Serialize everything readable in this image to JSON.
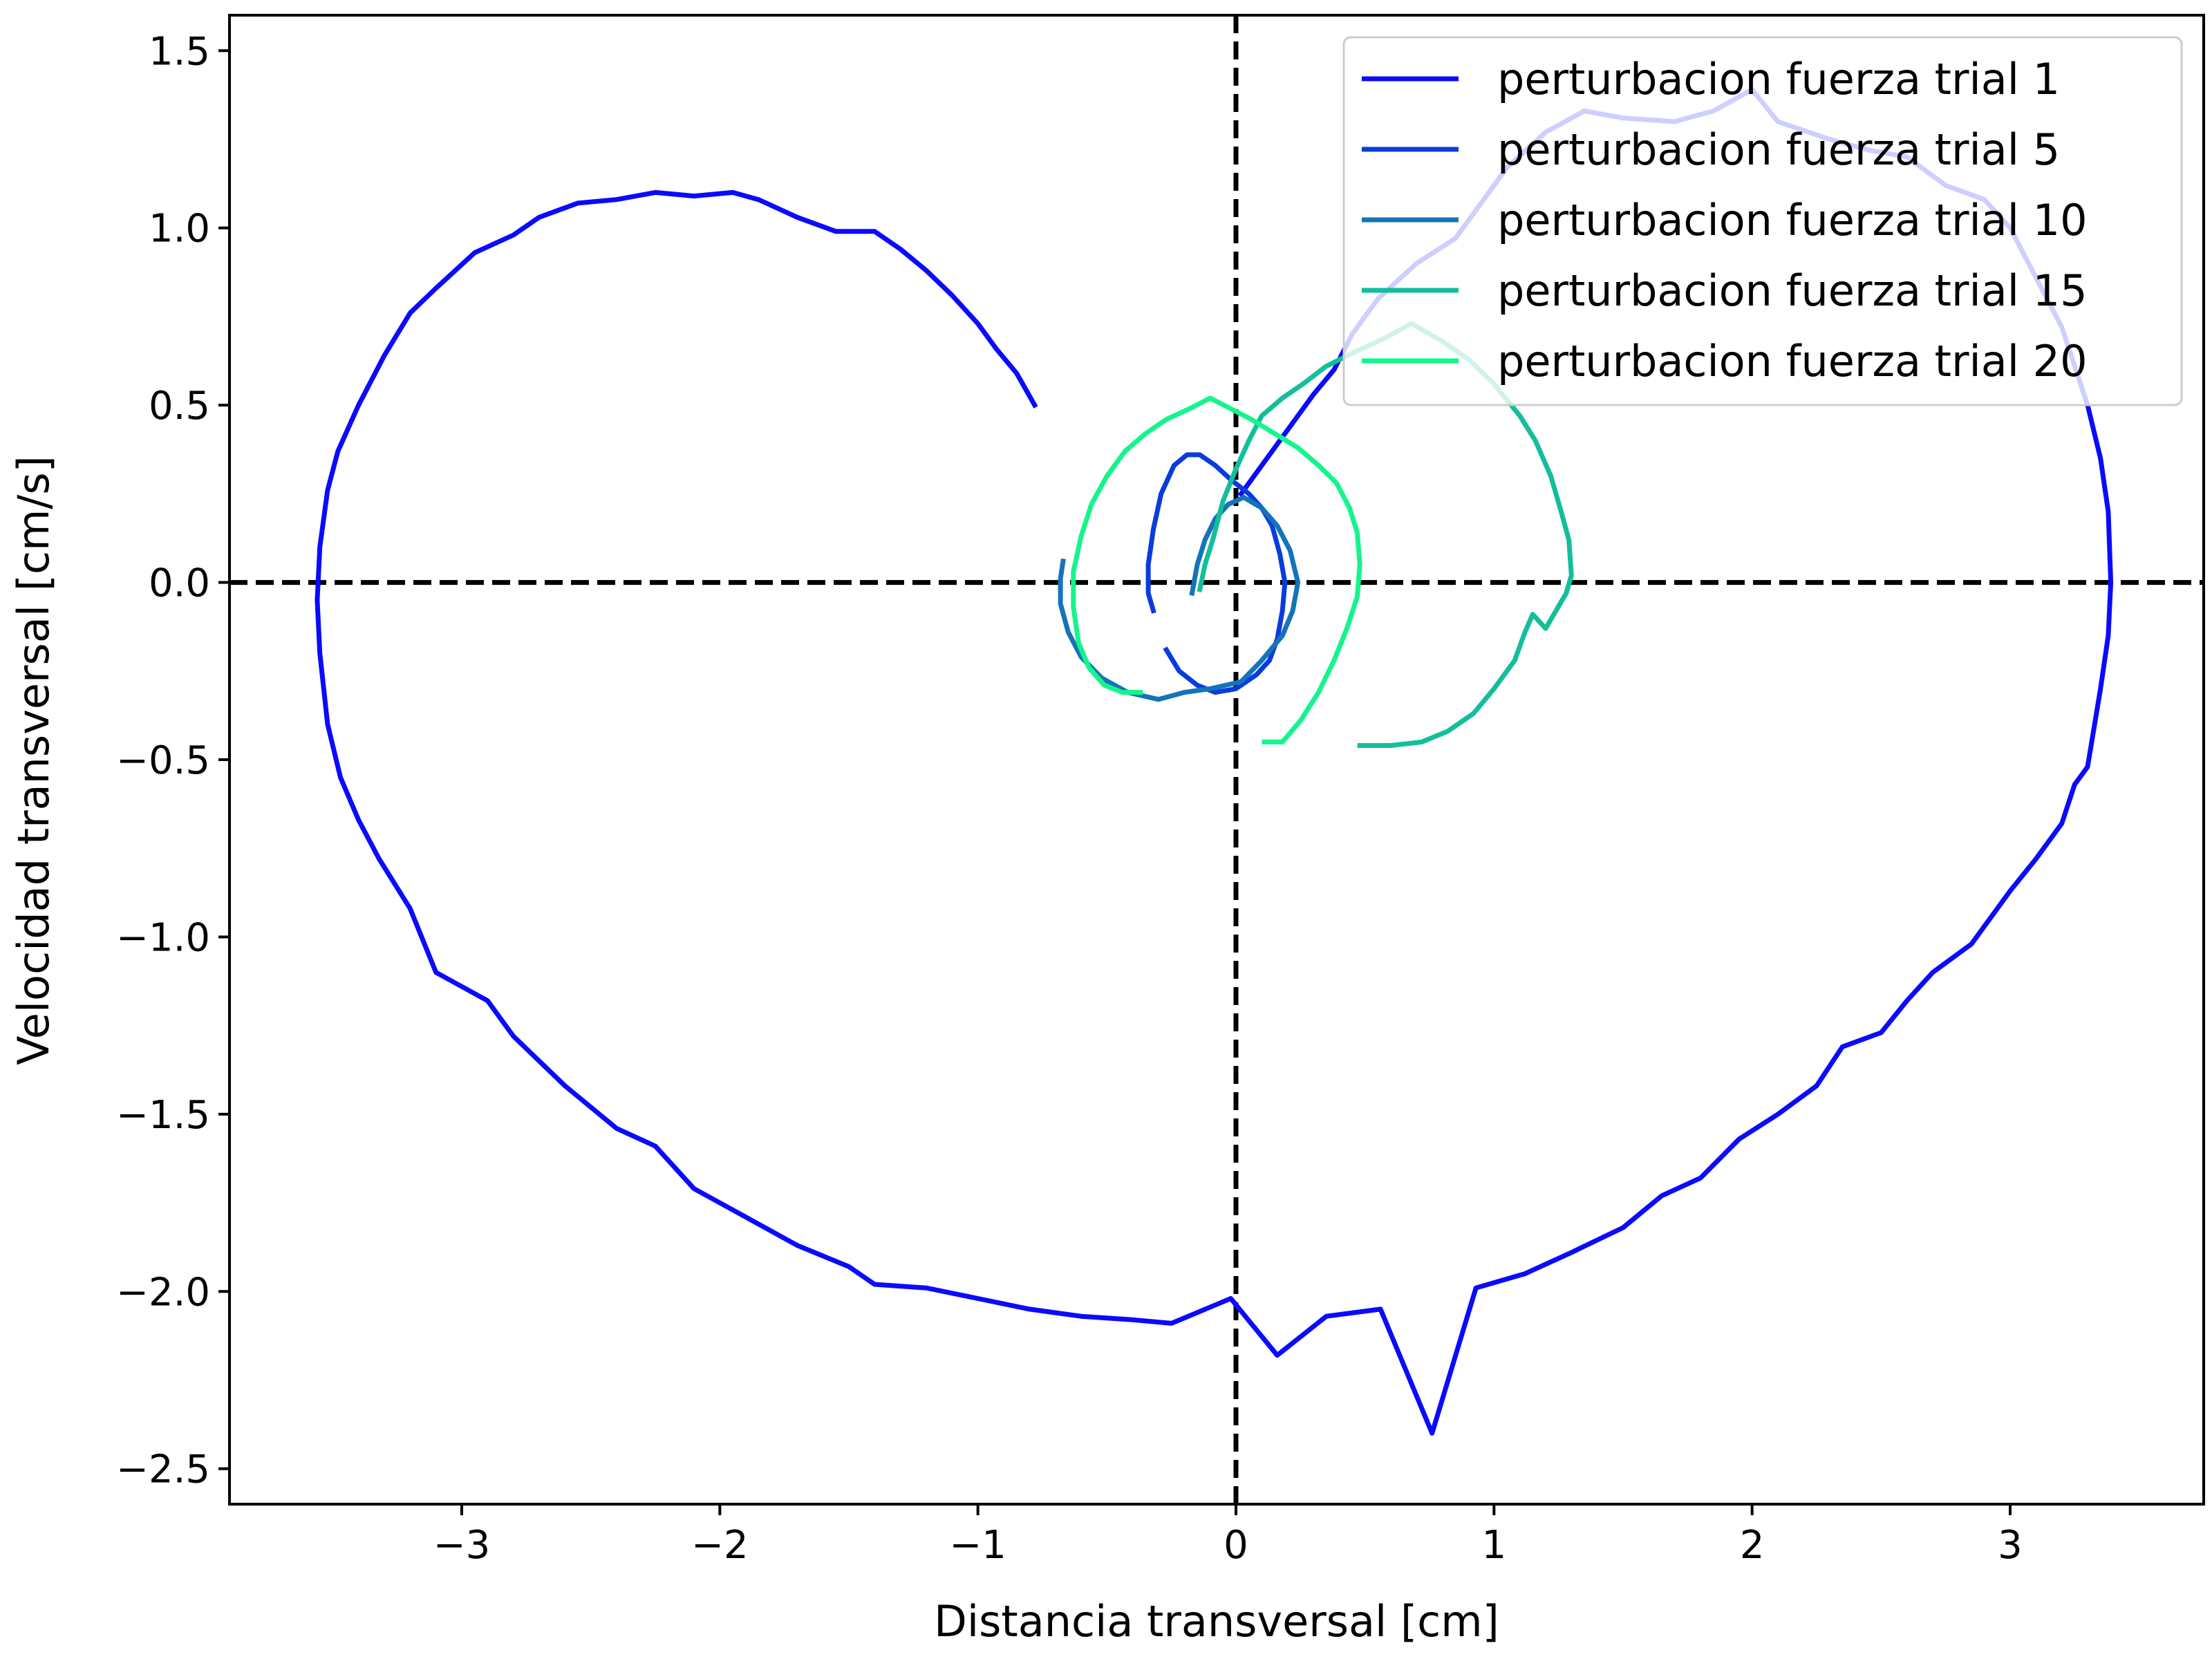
{
  "chart_data": {
    "type": "line",
    "title": "",
    "xlabel": "Distancia transversal [cm]",
    "ylabel": "Velocidad transversal [cm/s]",
    "xlim": [
      -3.9,
      3.75
    ],
    "ylim": [
      -2.6,
      1.6
    ],
    "xticks": [
      -3,
      -2,
      -1,
      0,
      1,
      2,
      3
    ],
    "yticks": [
      -2.5,
      -2.0,
      -1.5,
      -1.0,
      -0.5,
      0.0,
      0.5,
      1.0,
      1.5
    ],
    "xtick_labels": [
      "−3",
      "−2",
      "−1",
      "0",
      "1",
      "2",
      "3"
    ],
    "ytick_labels": [
      "−2.5",
      "−2.0",
      "−1.5",
      "−1.0",
      "−0.5",
      "0.0",
      "0.5",
      "1.0",
      "1.5"
    ],
    "grid": false,
    "legend_position": "top-right",
    "reference_lines": [
      {
        "orientation": "vertical",
        "value": 0,
        "style": "dashed",
        "color": "#000000"
      },
      {
        "orientation": "horizontal",
        "value": 0,
        "style": "dashed",
        "color": "#000000"
      }
    ],
    "series": [
      {
        "name": "perturbacion fuerza trial 1",
        "color": "#0a0aff",
        "points": [
          [
            -0.78,
            0.5
          ],
          [
            -0.85,
            0.59
          ],
          [
            -0.93,
            0.66
          ],
          [
            -1.0,
            0.73
          ],
          [
            -1.1,
            0.81
          ],
          [
            -1.2,
            0.88
          ],
          [
            -1.3,
            0.94
          ],
          [
            -1.4,
            0.99
          ],
          [
            -1.55,
            0.99
          ],
          [
            -1.7,
            1.03
          ],
          [
            -1.85,
            1.08
          ],
          [
            -1.95,
            1.1
          ],
          [
            -2.1,
            1.09
          ],
          [
            -2.25,
            1.1
          ],
          [
            -2.4,
            1.08
          ],
          [
            -2.55,
            1.07
          ],
          [
            -2.7,
            1.03
          ],
          [
            -2.8,
            0.98
          ],
          [
            -2.95,
            0.93
          ],
          [
            -3.1,
            0.83
          ],
          [
            -3.2,
            0.76
          ],
          [
            -3.3,
            0.64
          ],
          [
            -3.4,
            0.5
          ],
          [
            -3.48,
            0.37
          ],
          [
            -3.52,
            0.26
          ],
          [
            -3.55,
            0.1
          ],
          [
            -3.56,
            -0.05
          ],
          [
            -3.55,
            -0.2
          ],
          [
            -3.52,
            -0.4
          ],
          [
            -3.47,
            -0.55
          ],
          [
            -3.4,
            -0.67
          ],
          [
            -3.32,
            -0.78
          ],
          [
            -3.2,
            -0.92
          ],
          [
            -3.1,
            -1.1
          ],
          [
            -2.9,
            -1.18
          ],
          [
            -2.8,
            -1.28
          ],
          [
            -2.6,
            -1.42
          ],
          [
            -2.4,
            -1.54
          ],
          [
            -2.25,
            -1.59
          ],
          [
            -2.1,
            -1.71
          ],
          [
            -1.9,
            -1.79
          ],
          [
            -1.7,
            -1.87
          ],
          [
            -1.5,
            -1.93
          ],
          [
            -1.4,
            -1.98
          ],
          [
            -1.2,
            -1.99
          ],
          [
            -1.0,
            -2.02
          ],
          [
            -0.8,
            -2.05
          ],
          [
            -0.6,
            -2.07
          ],
          [
            -0.4,
            -2.08
          ],
          [
            -0.25,
            -2.09
          ],
          [
            -0.02,
            -2.02
          ],
          [
            0.16,
            -2.18
          ],
          [
            0.35,
            -2.07
          ],
          [
            0.56,
            -2.05
          ],
          [
            0.76,
            -2.4
          ],
          [
            0.93,
            -1.99
          ],
          [
            1.12,
            -1.95
          ],
          [
            1.3,
            -1.89
          ],
          [
            1.5,
            -1.82
          ],
          [
            1.65,
            -1.73
          ],
          [
            1.8,
            -1.68
          ],
          [
            1.95,
            -1.57
          ],
          [
            2.1,
            -1.5
          ],
          [
            2.25,
            -1.42
          ],
          [
            2.35,
            -1.31
          ],
          [
            2.5,
            -1.27
          ],
          [
            2.6,
            -1.18
          ],
          [
            2.7,
            -1.1
          ],
          [
            2.85,
            -1.02
          ],
          [
            3.0,
            -0.87
          ],
          [
            3.1,
            -0.78
          ],
          [
            3.2,
            -0.68
          ],
          [
            3.25,
            -0.57
          ],
          [
            3.3,
            -0.52
          ],
          [
            3.35,
            -0.3
          ],
          [
            3.38,
            -0.15
          ],
          [
            3.39,
            0.0
          ],
          [
            3.38,
            0.2
          ],
          [
            3.35,
            0.35
          ],
          [
            3.3,
            0.5
          ],
          [
            3.2,
            0.72
          ],
          [
            3.1,
            0.86
          ],
          [
            3.0,
            1.0
          ],
          [
            2.9,
            1.08
          ],
          [
            2.75,
            1.12
          ],
          [
            2.6,
            1.2
          ],
          [
            2.45,
            1.22
          ],
          [
            2.3,
            1.25
          ],
          [
            2.1,
            1.3
          ],
          [
            2.0,
            1.39
          ],
          [
            1.85,
            1.33
          ],
          [
            1.7,
            1.3
          ],
          [
            1.5,
            1.31
          ],
          [
            1.35,
            1.33
          ],
          [
            1.2,
            1.27
          ],
          [
            1.05,
            1.17
          ],
          [
            0.95,
            1.07
          ],
          [
            0.85,
            0.97
          ],
          [
            0.7,
            0.9
          ],
          [
            0.55,
            0.8
          ],
          [
            0.45,
            0.7
          ],
          [
            0.38,
            0.6
          ],
          [
            0.3,
            0.53
          ],
          [
            0.22,
            0.45
          ],
          [
            0.12,
            0.35
          ],
          [
            0.02,
            0.25
          ]
        ]
      },
      {
        "name": "perturbacion fuerza trial 5",
        "color": "#0a3cdc",
        "points": [
          [
            -0.27,
            -0.19
          ],
          [
            -0.22,
            -0.25
          ],
          [
            -0.15,
            -0.29
          ],
          [
            -0.08,
            -0.31
          ],
          [
            0.0,
            -0.3
          ],
          [
            0.08,
            -0.26
          ],
          [
            0.13,
            -0.22
          ],
          [
            0.16,
            -0.16
          ],
          [
            0.18,
            -0.08
          ],
          [
            0.19,
            0.0
          ],
          [
            0.17,
            0.08
          ],
          [
            0.14,
            0.16
          ],
          [
            0.1,
            0.21
          ],
          [
            0.05,
            0.25
          ],
          [
            -0.02,
            0.29
          ],
          [
            -0.08,
            0.33
          ],
          [
            -0.14,
            0.36
          ],
          [
            -0.19,
            0.36
          ],
          [
            -0.24,
            0.33
          ],
          [
            -0.29,
            0.25
          ],
          [
            -0.32,
            0.15
          ],
          [
            -0.34,
            0.05
          ],
          [
            -0.34,
            -0.03
          ],
          [
            -0.32,
            -0.08
          ]
        ]
      },
      {
        "name": "perturbacion fuerza trial 10",
        "color": "#1473b9",
        "points": [
          [
            -0.17,
            -0.03
          ],
          [
            -0.15,
            0.05
          ],
          [
            -0.12,
            0.12
          ],
          [
            -0.08,
            0.18
          ],
          [
            -0.03,
            0.22
          ],
          [
            0.03,
            0.24
          ],
          [
            0.1,
            0.21
          ],
          [
            0.16,
            0.16
          ],
          [
            0.21,
            0.09
          ],
          [
            0.24,
            0.0
          ],
          [
            0.22,
            -0.08
          ],
          [
            0.18,
            -0.15
          ],
          [
            0.1,
            -0.22
          ],
          [
            0.02,
            -0.28
          ],
          [
            -0.1,
            -0.3
          ],
          [
            -0.2,
            -0.31
          ],
          [
            -0.3,
            -0.33
          ],
          [
            -0.42,
            -0.31
          ],
          [
            -0.52,
            -0.27
          ],
          [
            -0.6,
            -0.21
          ],
          [
            -0.65,
            -0.14
          ],
          [
            -0.68,
            -0.06
          ],
          [
            -0.68,
            0.01
          ],
          [
            -0.67,
            0.06
          ]
        ]
      },
      {
        "name": "perturbacion fuerza trial 15",
        "color": "#14be9b",
        "points": [
          [
            0.48,
            -0.46
          ],
          [
            0.6,
            -0.46
          ],
          [
            0.72,
            -0.45
          ],
          [
            0.82,
            -0.42
          ],
          [
            0.92,
            -0.37
          ],
          [
            1.0,
            -0.3
          ],
          [
            1.08,
            -0.22
          ],
          [
            1.12,
            -0.14
          ],
          [
            1.15,
            -0.09
          ],
          [
            1.2,
            -0.13
          ],
          [
            1.24,
            -0.08
          ],
          [
            1.28,
            -0.03
          ],
          [
            1.3,
            0.02
          ],
          [
            1.29,
            0.12
          ],
          [
            1.26,
            0.2
          ],
          [
            1.22,
            0.3
          ],
          [
            1.16,
            0.4
          ],
          [
            1.1,
            0.47
          ],
          [
            1.0,
            0.56
          ],
          [
            0.9,
            0.63
          ],
          [
            0.8,
            0.68
          ],
          [
            0.68,
            0.73
          ],
          [
            0.58,
            0.69
          ],
          [
            0.46,
            0.65
          ],
          [
            0.35,
            0.61
          ],
          [
            0.26,
            0.56
          ],
          [
            0.18,
            0.52
          ],
          [
            0.1,
            0.47
          ],
          [
            0.05,
            0.4
          ],
          [
            0.0,
            0.32
          ],
          [
            -0.05,
            0.23
          ],
          [
            -0.09,
            0.12
          ],
          [
            -0.12,
            0.05
          ],
          [
            -0.14,
            -0.02
          ]
        ]
      },
      {
        "name": "perturbacion fuerza trial 20",
        "color": "#14f58c",
        "points": [
          [
            0.11,
            -0.45
          ],
          [
            0.18,
            -0.45
          ],
          [
            0.25,
            -0.39
          ],
          [
            0.32,
            -0.31
          ],
          [
            0.38,
            -0.22
          ],
          [
            0.43,
            -0.13
          ],
          [
            0.47,
            -0.04
          ],
          [
            0.48,
            0.05
          ],
          [
            0.47,
            0.14
          ],
          [
            0.44,
            0.21
          ],
          [
            0.39,
            0.28
          ],
          [
            0.32,
            0.33
          ],
          [
            0.24,
            0.38
          ],
          [
            0.15,
            0.42
          ],
          [
            0.06,
            0.46
          ],
          [
            -0.02,
            0.49
          ],
          [
            -0.1,
            0.52
          ],
          [
            -0.18,
            0.49
          ],
          [
            -0.27,
            0.46
          ],
          [
            -0.35,
            0.42
          ],
          [
            -0.43,
            0.37
          ],
          [
            -0.5,
            0.3
          ],
          [
            -0.56,
            0.22
          ],
          [
            -0.6,
            0.13
          ],
          [
            -0.63,
            0.03
          ],
          [
            -0.63,
            -0.07
          ],
          [
            -0.61,
            -0.17
          ],
          [
            -0.57,
            -0.24
          ],
          [
            -0.51,
            -0.29
          ],
          [
            -0.44,
            -0.31
          ],
          [
            -0.37,
            -0.31
          ]
        ]
      }
    ]
  }
}
